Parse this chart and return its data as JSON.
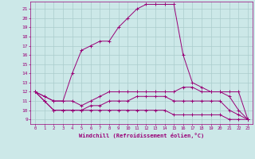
{
  "xlabel": "Windchill (Refroidissement éolien,°C)",
  "bg_color": "#cce8e8",
  "grid_color": "#aacccc",
  "line_color": "#990077",
  "x_ticks": [
    0,
    1,
    2,
    3,
    4,
    5,
    6,
    7,
    8,
    9,
    10,
    11,
    12,
    13,
    14,
    15,
    16,
    17,
    18,
    19,
    20,
    21,
    22,
    23
  ],
  "y_ticks": [
    9,
    10,
    11,
    12,
    13,
    14,
    15,
    16,
    17,
    18,
    19,
    20,
    21
  ],
  "ylim": [
    8.5,
    21.8
  ],
  "xlim": [
    -0.5,
    23.5
  ],
  "lines": [
    {
      "x": [
        0,
        1,
        2,
        3,
        4,
        5,
        6,
        7,
        8,
        9,
        10,
        11,
        12,
        13,
        14,
        15,
        16,
        17,
        18,
        19,
        20,
        21,
        22,
        23
      ],
      "y": [
        12,
        11.5,
        11,
        11,
        14,
        16.5,
        17,
        17.5,
        17.5,
        19,
        20,
        21,
        21.5,
        21.5,
        21.5,
        21.5,
        16,
        13,
        12.5,
        12,
        12,
        12,
        12,
        9
      ]
    },
    {
      "x": [
        0,
        1,
        2,
        3,
        4,
        5,
        6,
        7,
        8,
        9,
        10,
        11,
        12,
        13,
        14,
        15,
        16,
        17,
        18,
        19,
        20,
        21,
        22,
        23
      ],
      "y": [
        12,
        11.5,
        11,
        11,
        11,
        10.5,
        11,
        11.5,
        12,
        12,
        12,
        12,
        12,
        12,
        12,
        12,
        12.5,
        12.5,
        12,
        12,
        12,
        11.5,
        10,
        9
      ]
    },
    {
      "x": [
        0,
        1,
        2,
        3,
        4,
        5,
        6,
        7,
        8,
        9,
        10,
        11,
        12,
        13,
        14,
        15,
        16,
        17,
        18,
        19,
        20,
        21,
        22,
        23
      ],
      "y": [
        12,
        11,
        10,
        10,
        10,
        10,
        10.5,
        10.5,
        11,
        11,
        11,
        11.5,
        11.5,
        11.5,
        11.5,
        11,
        11,
        11,
        11,
        11,
        11,
        10,
        9.5,
        9
      ]
    },
    {
      "x": [
        0,
        1,
        2,
        3,
        4,
        5,
        6,
        7,
        8,
        9,
        10,
        11,
        12,
        13,
        14,
        15,
        16,
        17,
        18,
        19,
        20,
        21,
        22,
        23
      ],
      "y": [
        12,
        11,
        10,
        10,
        10,
        10,
        10,
        10,
        10,
        10,
        10,
        10,
        10,
        10,
        10,
        9.5,
        9.5,
        9.5,
        9.5,
        9.5,
        9.5,
        9,
        9,
        9
      ]
    }
  ]
}
